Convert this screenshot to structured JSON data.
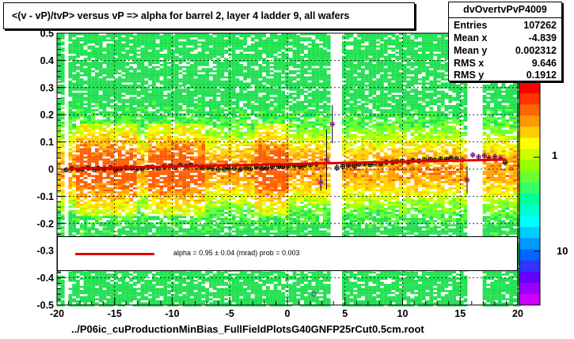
{
  "title": "<(v - vP)/tvP> versus   vP => alpha for barrel 2, layer 4 ladder 9, all wafers",
  "stats": {
    "name": "dvOvertvPvP4009",
    "rows": [
      {
        "key": "Entries",
        "value": "107262"
      },
      {
        "key": "Mean x",
        "value": "-4.839"
      },
      {
        "key": "Mean y",
        "value": "0.002312"
      },
      {
        "key": "RMS x",
        "value": "9.646"
      },
      {
        "key": "RMS y",
        "value": "0.1912"
      }
    ]
  },
  "fit": {
    "text": "alpha =     0.95 ±   0.04 (mrad) prob = 0.003",
    "color": "#e00000"
  },
  "x_axis_label": "../P06ic_cuProductionMinBias_FullFieldPlotsG40GNFP25rCut0.5cm.root",
  "color_scale": {
    "labels": [
      "1",
      "10"
    ],
    "colors": [
      "#ff0000",
      "#ff3300",
      "#ff6600",
      "#ff9900",
      "#ffcc00",
      "#ffff00",
      "#ccff00",
      "#99ff00",
      "#66ff33",
      "#33ff66",
      "#00ff99",
      "#00ffcc",
      "#00ffff",
      "#00ccff",
      "#0099ff",
      "#0066ff",
      "#3333ff",
      "#6600ff",
      "#9900ff",
      "#cc00ff"
    ]
  },
  "chart_data": {
    "type": "heatmap",
    "title": "<(v - vP)/tvP> versus   vP => alpha for barrel 2, layer 4 ladder 9, all wafers",
    "xlabel": "../P06ic_cuProductionMinBias_FullFieldPlotsG40GNFP25rCut0.5cm.root",
    "ylabel": "",
    "xlim": [
      -20,
      20
    ],
    "ylim": [
      -0.5,
      0.5
    ],
    "x_ticks": [
      -20,
      -15,
      -10,
      -5,
      0,
      5,
      10,
      15,
      20
    ],
    "x_tick_labels": [
      "-20",
      "-15",
      "-10",
      "-5",
      "0",
      "5",
      "10",
      "15",
      "20"
    ],
    "y_ticks": [
      -0.5,
      -0.4,
      -0.3,
      -0.2,
      -0.1,
      0,
      0.1,
      0.2,
      0.3,
      0.4,
      0.5
    ],
    "y_tick_labels": [
      "-0.5",
      "-0.4",
      "-0.3",
      "-0.2",
      "-0.1",
      "0",
      "0.1",
      "0.2",
      "0.3",
      "0.4",
      "0.5"
    ],
    "grid": true,
    "empty_x_ranges": [
      [
        -19.5,
        -19.0
      ],
      [
        3.7,
        4.9
      ],
      [
        15.5,
        16.8
      ]
    ],
    "hot_regions": [
      [
        -18.5,
        -13.0
      ],
      [
        -12.0,
        -7.0
      ],
      [
        -3.0,
        0.0
      ]
    ],
    "profile_points": {
      "x": [
        -19.2,
        -18.7,
        -18.2,
        -17.8,
        -17.3,
        -16.8,
        -16.4,
        -15.9,
        -15.4,
        -14.9,
        -14.5,
        -14.0,
        -13.5,
        -13.1,
        -12.6,
        -12.1,
        -11.7,
        -11.2,
        -10.7,
        -10.2,
        -9.8,
        -9.3,
        -8.8,
        -8.4,
        -7.9,
        -7.4,
        -6.9,
        -6.5,
        -6.0,
        -5.5,
        -5.1,
        -4.6,
        -4.1,
        -3.6,
        -3.2,
        -2.7,
        -2.2,
        -1.8,
        -1.3,
        -0.8,
        -0.4,
        0.1,
        0.6,
        1.1,
        1.5,
        2.0,
        2.5,
        2.9,
        3.4,
        3.9,
        4.3,
        4.8,
        5.3,
        5.8,
        6.2,
        6.7,
        7.2,
        7.6,
        8.1,
        8.6,
        9.1,
        9.5,
        10.0,
        10.5,
        10.9,
        11.4,
        11.9,
        12.4,
        12.8,
        13.3,
        13.8,
        14.2,
        14.7,
        15.2,
        15.6,
        16.1,
        16.6,
        17.1,
        17.5,
        18.0,
        18.5,
        18.9
      ],
      "y": [
        -0.003,
        0.002,
        -0.001,
        0.0,
        0.004,
        -0.002,
        0.003,
        0.001,
        0.006,
        -0.003,
        0.002,
        0.005,
        0.004,
        -0.001,
        0.003,
        0.006,
        0.008,
        0.004,
        0.009,
        0.012,
        0.006,
        0.014,
        0.01,
        0.015,
        0.009,
        0.008,
        0.005,
        0.002,
        -0.001,
        0.0,
        0.002,
        0.003,
        -0.002,
        0.004,
        0.001,
        0.006,
        0.003,
        0.005,
        0.009,
        0.01,
        0.008,
        0.012,
        0.013,
        0.01,
        0.014,
        0.016,
        0.018,
        -0.05,
        0.035,
        0.165,
        0.005,
        0.01,
        0.015,
        0.012,
        0.018,
        0.02,
        0.016,
        0.022,
        0.02,
        0.025,
        0.024,
        0.028,
        0.03,
        0.026,
        0.032,
        0.03,
        0.034,
        0.035,
        0.033,
        0.037,
        0.036,
        0.04,
        0.038,
        0.035,
        -0.04,
        0.052,
        0.045,
        0.05,
        0.042,
        0.046,
        0.04,
        0.025
      ],
      "err": [
        0.008,
        0.006,
        0.005,
        0.005,
        0.005,
        0.005,
        0.005,
        0.005,
        0.005,
        0.005,
        0.005,
        0.005,
        0.005,
        0.005,
        0.005,
        0.005,
        0.005,
        0.005,
        0.005,
        0.005,
        0.005,
        0.005,
        0.005,
        0.005,
        0.005,
        0.005,
        0.005,
        0.005,
        0.005,
        0.005,
        0.005,
        0.005,
        0.005,
        0.005,
        0.005,
        0.005,
        0.005,
        0.005,
        0.005,
        0.005,
        0.005,
        0.005,
        0.006,
        0.006,
        0.006,
        0.007,
        0.008,
        0.03,
        0.11,
        0.07,
        0.012,
        0.009,
        0.008,
        0.008,
        0.008,
        0.008,
        0.008,
        0.008,
        0.008,
        0.008,
        0.008,
        0.008,
        0.008,
        0.008,
        0.008,
        0.008,
        0.008,
        0.008,
        0.008,
        0.008,
        0.008,
        0.008,
        0.008,
        0.008,
        0.05,
        0.01,
        0.01,
        0.01,
        0.01,
        0.01,
        0.01,
        0.012
      ]
    },
    "fit_line": {
      "x": [
        -19,
        19
      ],
      "y": [
        0.002,
        0.035
      ]
    },
    "outliers": [
      {
        "x": 2.3,
        "y": -0.46
      }
    ]
  }
}
